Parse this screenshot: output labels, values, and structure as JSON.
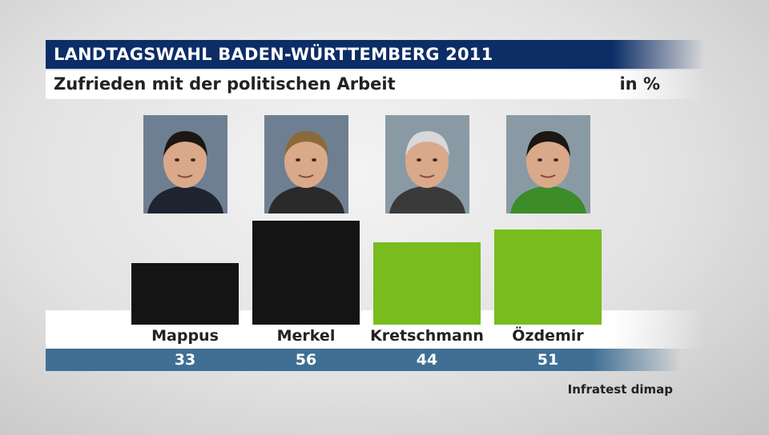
{
  "title": "LANDTAGSWAHL BADEN-WÜRTTEMBERG 2011",
  "subtitle": "Zufrieden mit der politischen Arbeit",
  "unit": "in %",
  "source": "Infratest dimap",
  "colors": {
    "title_bg": "#0c2d66",
    "value_band": "#3f6f94",
    "black_bar": "#141414",
    "green_bar": "#78bc1e"
  },
  "chart_data": {
    "type": "bar",
    "categories": [
      "Mappus",
      "Merkel",
      "Kretschmann",
      "Özdemir"
    ],
    "values": [
      33,
      56,
      44,
      51
    ],
    "bar_colors": [
      "#141414",
      "#141414",
      "#78bc1e",
      "#78bc1e"
    ],
    "title": "LANDTAGSWAHL BADEN-WÜRTTEMBERG 2011",
    "subtitle": "Zufrieden mit der politischen Arbeit",
    "ylabel": "in %",
    "grid": false,
    "legend": "none"
  }
}
